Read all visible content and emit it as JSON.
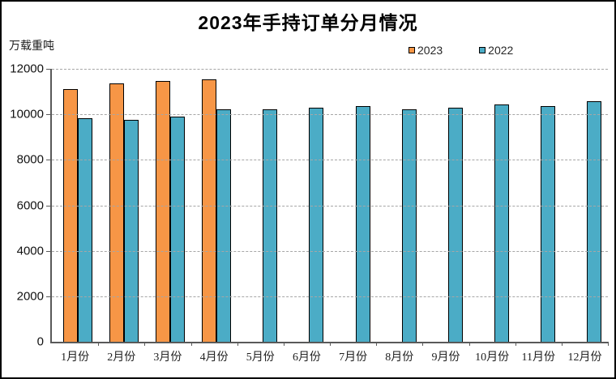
{
  "chart_data": {
    "type": "bar",
    "title": "2023年手持订单分月情况",
    "unit_label": "万载重吨",
    "categories": [
      "1月份",
      "2月份",
      "3月份",
      "4月份",
      "5月份",
      "6月份",
      "7月份",
      "8月份",
      "9月份",
      "10月份",
      "11月份",
      "12月份"
    ],
    "series": [
      {
        "name": "2023",
        "color": "#F79646",
        "values": [
          11100,
          11360,
          11460,
          11520,
          null,
          null,
          null,
          null,
          null,
          null,
          null,
          null
        ]
      },
      {
        "name": "2022",
        "color": "#4BACC6",
        "values": [
          9830,
          9750,
          9900,
          10220,
          10220,
          10300,
          10360,
          10210,
          10290,
          10450,
          10380,
          10570
        ]
      }
    ],
    "ylim": [
      0,
      12000
    ],
    "yticks": [
      0,
      2000,
      4000,
      6000,
      8000,
      10000,
      12000
    ],
    "grid": "horizontal-dashed",
    "legend_position": "top-right",
    "colors": {
      "bar_outline": "#000000",
      "gridline": "#A6A6A6",
      "axis": "#595959",
      "background": "#FFFFFF",
      "frame_border": "#000000"
    }
  }
}
